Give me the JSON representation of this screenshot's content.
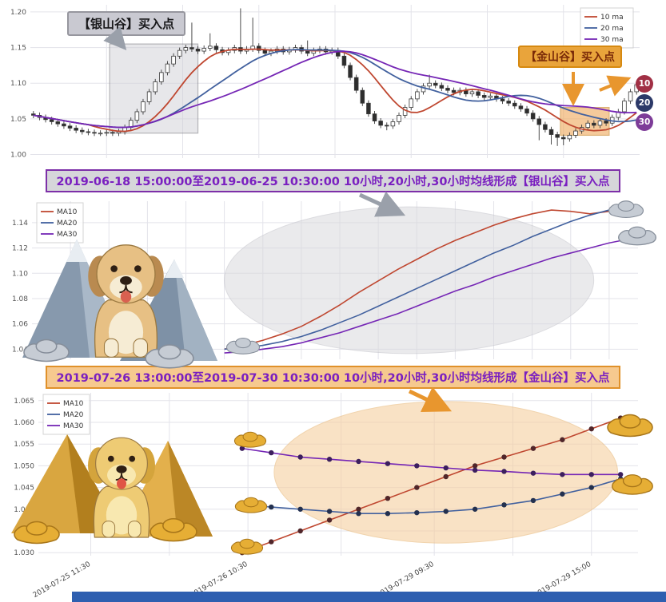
{
  "colors": {
    "ma10": "#bf4730",
    "ma20": "#41609e",
    "ma30": "#7526b5",
    "grid": "#e3e3ea",
    "candle_up": "#ffffff",
    "candle_down": "#2d2d2d"
  },
  "footer": {
    "color": "#2e5fb0"
  },
  "top": {
    "callout_silver": "【银山谷】买入点",
    "callout_gold": "【金山谷】买入点",
    "badges": [
      {
        "label": "10",
        "color": "#a13045"
      },
      {
        "label": "20",
        "color": "#2c3968"
      },
      {
        "label": "30",
        "color": "#7d3c98"
      }
    ]
  },
  "banners": {
    "silver": "2019-06-18 15:00:00至2019-06-25 10:30:00 10小时,20小时,30小时均线形成【银山谷】买入点",
    "gold": "2019-07-26 13:00:00至2019-07-30 10:30:00 10小时,20小时,30小时均线形成【金山谷】买入点"
  },
  "decorations": {
    "middle": [
      "silver-mountains",
      "golden-retriever-dog",
      "silver-ingots"
    ],
    "bottom": [
      "gold-pyramids",
      "golden-dog",
      "gold-ingots"
    ]
  },
  "chart_data": [
    {
      "type": "candlestick",
      "title": "",
      "ylim": [
        0.995,
        1.21
      ],
      "yticks": [
        1.0,
        1.05,
        1.1,
        1.15,
        1.2
      ],
      "ytick_labels": [
        "1.00",
        "1.05",
        "1.10",
        "1.15",
        "1.20"
      ],
      "xlim": [
        0,
        100
      ],
      "xgrid": [
        12.5,
        25,
        37.5,
        50,
        62.5,
        75,
        87.5
      ],
      "legend": [
        {
          "label": "10 ma",
          "color": "ma10"
        },
        {
          "label": "20 ma",
          "color": "ma20"
        },
        {
          "label": "30 ma",
          "color": "ma30"
        }
      ],
      "ma_windows": [
        10,
        20,
        30
      ],
      "highlights": [
        {
          "shape": "rect",
          "name": "silver-valley-region",
          "x0": 13,
          "x1": 27.5,
          "y0": 1.03,
          "y1": 1.155,
          "fill": "#d0d0d6",
          "opacity": 0.5,
          "stroke": "#6b6b73"
        },
        {
          "shape": "rect",
          "name": "gold-valley-region",
          "x0": 87,
          "x1": 95,
          "y0": 1.027,
          "y1": 1.066,
          "fill": "#f0a85a",
          "opacity": 0.6,
          "stroke": "#c87f1e"
        }
      ],
      "candles": [
        [
          1.057,
          1.061,
          1.051,
          1.055
        ],
        [
          1.055,
          1.059,
          1.048,
          1.052
        ],
        [
          1.052,
          1.056,
          1.045,
          1.049
        ],
        [
          1.049,
          1.053,
          1.042,
          1.046
        ],
        [
          1.046,
          1.05,
          1.039,
          1.043
        ],
        [
          1.043,
          1.047,
          1.036,
          1.04
        ],
        [
          1.04,
          1.044,
          1.033,
          1.037
        ],
        [
          1.037,
          1.041,
          1.03,
          1.034
        ],
        [
          1.034,
          1.038,
          1.028,
          1.032
        ],
        [
          1.032,
          1.036,
          1.027,
          1.031
        ],
        [
          1.031,
          1.035,
          1.026,
          1.03
        ],
        [
          1.03,
          1.034,
          1.026,
          1.03
        ],
        [
          1.03,
          1.035,
          1.026,
          1.031
        ],
        [
          1.031,
          1.035,
          1.026,
          1.03
        ],
        [
          1.03,
          1.036,
          1.026,
          1.032
        ],
        [
          1.032,
          1.042,
          1.028,
          1.038
        ],
        [
          1.038,
          1.052,
          1.034,
          1.048
        ],
        [
          1.048,
          1.064,
          1.044,
          1.06
        ],
        [
          1.06,
          1.078,
          1.056,
          1.074
        ],
        [
          1.074,
          1.092,
          1.07,
          1.088
        ],
        [
          1.088,
          1.106,
          1.084,
          1.102
        ],
        [
          1.102,
          1.119,
          1.098,
          1.115
        ],
        [
          1.115,
          1.131,
          1.111,
          1.127
        ],
        [
          1.127,
          1.142,
          1.123,
          1.138
        ],
        [
          1.138,
          1.15,
          1.134,
          1.146
        ],
        [
          1.146,
          1.154,
          1.142,
          1.15
        ],
        [
          1.15,
          1.185,
          1.144,
          1.148
        ],
        [
          1.148,
          1.152,
          1.141,
          1.145
        ],
        [
          1.145,
          1.153,
          1.141,
          1.149
        ],
        [
          1.149,
          1.17,
          1.145,
          1.152
        ],
        [
          1.152,
          1.156,
          1.143,
          1.147
        ],
        [
          1.147,
          1.151,
          1.139,
          1.143
        ],
        [
          1.143,
          1.15,
          1.139,
          1.146
        ],
        [
          1.146,
          1.154,
          1.142,
          1.15
        ],
        [
          1.15,
          1.205,
          1.141,
          1.145
        ],
        [
          1.145,
          1.152,
          1.141,
          1.148
        ],
        [
          1.148,
          1.192,
          1.144,
          1.152
        ],
        [
          1.152,
          1.156,
          1.142,
          1.146
        ],
        [
          1.146,
          1.15,
          1.138,
          1.142
        ],
        [
          1.142,
          1.149,
          1.138,
          1.145
        ],
        [
          1.145,
          1.152,
          1.141,
          1.148
        ],
        [
          1.148,
          1.152,
          1.14,
          1.144
        ],
        [
          1.144,
          1.151,
          1.14,
          1.147
        ],
        [
          1.147,
          1.154,
          1.143,
          1.15
        ],
        [
          1.15,
          1.154,
          1.141,
          1.145
        ],
        [
          1.145,
          1.16,
          1.138,
          1.142
        ],
        [
          1.142,
          1.15,
          1.138,
          1.146
        ],
        [
          1.146,
          1.152,
          1.142,
          1.148
        ],
        [
          1.148,
          1.152,
          1.14,
          1.144
        ],
        [
          1.144,
          1.15,
          1.14,
          1.146
        ],
        [
          1.146,
          1.15,
          1.134,
          1.138
        ],
        [
          1.138,
          1.142,
          1.121,
          1.125
        ],
        [
          1.125,
          1.129,
          1.104,
          1.108
        ],
        [
          1.108,
          1.112,
          1.086,
          1.09
        ],
        [
          1.09,
          1.094,
          1.068,
          1.072
        ],
        [
          1.072,
          1.076,
          1.053,
          1.057
        ],
        [
          1.057,
          1.061,
          1.043,
          1.047
        ],
        [
          1.047,
          1.051,
          1.037,
          1.041
        ],
        [
          1.041,
          1.045,
          1.034,
          1.04
        ],
        [
          1.04,
          1.05,
          1.036,
          1.046
        ],
        [
          1.046,
          1.059,
          1.042,
          1.055
        ],
        [
          1.055,
          1.07,
          1.051,
          1.066
        ],
        [
          1.066,
          1.082,
          1.062,
          1.078
        ],
        [
          1.078,
          1.092,
          1.074,
          1.088
        ],
        [
          1.088,
          1.1,
          1.084,
          1.096
        ],
        [
          1.096,
          1.112,
          1.092,
          1.1
        ],
        [
          1.1,
          1.104,
          1.093,
          1.097
        ],
        [
          1.097,
          1.101,
          1.089,
          1.093
        ],
        [
          1.093,
          1.097,
          1.086,
          1.09
        ],
        [
          1.09,
          1.094,
          1.083,
          1.087
        ],
        [
          1.087,
          1.094,
          1.083,
          1.09
        ],
        [
          1.09,
          1.094,
          1.081,
          1.085
        ],
        [
          1.085,
          1.092,
          1.081,
          1.088
        ],
        [
          1.088,
          1.092,
          1.079,
          1.083
        ],
        [
          1.083,
          1.087,
          1.076,
          1.08
        ],
        [
          1.08,
          1.086,
          1.076,
          1.082
        ],
        [
          1.082,
          1.086,
          1.074,
          1.078
        ],
        [
          1.078,
          1.082,
          1.071,
          1.075
        ],
        [
          1.075,
          1.079,
          1.068,
          1.072
        ],
        [
          1.072,
          1.076,
          1.064,
          1.068
        ],
        [
          1.068,
          1.072,
          1.06,
          1.064
        ],
        [
          1.064,
          1.068,
          1.054,
          1.058
        ],
        [
          1.058,
          1.062,
          1.046,
          1.05
        ],
        [
          1.05,
          1.054,
          1.02,
          1.042
        ],
        [
          1.042,
          1.046,
          1.031,
          1.035
        ],
        [
          1.035,
          1.039,
          1.014,
          1.028
        ],
        [
          1.028,
          1.032,
          1.012,
          1.024
        ],
        [
          1.024,
          1.028,
          1.013,
          1.022
        ],
        [
          1.022,
          1.031,
          1.018,
          1.027
        ],
        [
          1.027,
          1.037,
          1.023,
          1.033
        ],
        [
          1.033,
          1.042,
          1.029,
          1.038
        ],
        [
          1.038,
          1.048,
          1.034,
          1.044
        ],
        [
          1.044,
          1.048,
          1.037,
          1.041
        ],
        [
          1.041,
          1.051,
          1.037,
          1.047
        ],
        [
          1.047,
          1.051,
          1.04,
          1.044
        ],
        [
          1.044,
          1.056,
          1.04,
          1.052
        ],
        [
          1.052,
          1.064,
          1.048,
          1.06
        ],
        [
          1.06,
          1.079,
          1.056,
          1.075
        ],
        [
          1.075,
          1.092,
          1.071,
          1.088
        ],
        [
          1.088,
          1.102,
          1.084,
          1.098
        ]
      ]
    },
    {
      "type": "line",
      "title": "",
      "ylim": [
        1.032,
        1.157
      ],
      "yticks": [
        1.04,
        1.06,
        1.08,
        1.1,
        1.12,
        1.14
      ],
      "ytick_labels": [
        "1.04",
        "1.06",
        "1.08",
        "1.10",
        "1.12",
        "1.14"
      ],
      "xlim": [
        0,
        31.5
      ],
      "xgrid": [
        2,
        4,
        6,
        8,
        10,
        12,
        14,
        16,
        18,
        20,
        22,
        24,
        26,
        28,
        30
      ],
      "legend": [
        {
          "label": "MA10",
          "color": "ma10"
        },
        {
          "label": "MA20",
          "color": "ma20"
        },
        {
          "label": "MA30",
          "color": "ma30"
        }
      ],
      "x": [
        10,
        11,
        12,
        13,
        14,
        15,
        16,
        17,
        18,
        19,
        20,
        21,
        22,
        23,
        24,
        25,
        26,
        27,
        28,
        29,
        30,
        31
      ],
      "series": [
        {
          "name": "MA10",
          "color": "ma10",
          "values": [
            1.04,
            1.043,
            1.047,
            1.052,
            1.058,
            1.066,
            1.075,
            1.085,
            1.094,
            1.103,
            1.111,
            1.119,
            1.126,
            1.132,
            1.138,
            1.143,
            1.147,
            1.15,
            1.149,
            1.147,
            1.149,
            1.152
          ]
        },
        {
          "name": "MA20",
          "color": "ma20",
          "values": [
            1.04,
            1.041,
            1.043,
            1.046,
            1.05,
            1.055,
            1.061,
            1.067,
            1.074,
            1.081,
            1.088,
            1.095,
            1.102,
            1.109,
            1.116,
            1.122,
            1.129,
            1.135,
            1.141,
            1.146,
            1.15,
            1.153
          ]
        },
        {
          "name": "MA30",
          "color": "ma30",
          "values": [
            1.037,
            1.038,
            1.04,
            1.042,
            1.045,
            1.049,
            1.053,
            1.058,
            1.063,
            1.068,
            1.074,
            1.08,
            1.086,
            1.091,
            1.097,
            1.102,
            1.107,
            1.112,
            1.116,
            1.12,
            1.124,
            1.127
          ]
        }
      ],
      "highlights": [
        {
          "shape": "ellipse",
          "name": "silver-valley-ellipse",
          "cx": 19.6,
          "cy": 1.0945,
          "rx": 9.6,
          "ry": 0.058,
          "fill": "#d9d9dd",
          "opacity": 0.55,
          "stroke": "#bfbfc6"
        }
      ]
    },
    {
      "type": "line",
      "title": "",
      "ylim": [
        1.0293,
        1.0668
      ],
      "yticks": [
        1.03,
        1.035,
        1.04,
        1.045,
        1.05,
        1.055,
        1.06,
        1.065
      ],
      "ytick_labels": [
        "1.030",
        "1.035",
        "1.040",
        "1.045",
        "1.050",
        "1.055",
        "1.060",
        "1.065"
      ],
      "xlim": [
        0,
        20.6
      ],
      "xgrid": [
        1.8,
        4.5,
        7.2,
        10.4,
        13.6,
        16.3,
        19.0
      ],
      "markers": true,
      "legend": [
        {
          "label": "MA10",
          "color": "ma10"
        },
        {
          "label": "MA20",
          "color": "ma20"
        },
        {
          "label": "MA30",
          "color": "ma30"
        }
      ],
      "x": [
        7,
        8,
        9,
        10,
        11,
        12,
        13,
        14,
        15,
        16,
        17,
        18,
        19,
        20
      ],
      "series": [
        {
          "name": "MA10",
          "color": "ma10",
          "dot": "#50262a",
          "values": [
            1.03,
            1.0325,
            1.035,
            1.0375,
            1.04,
            1.0425,
            1.045,
            1.0475,
            1.05,
            1.052,
            1.054,
            1.056,
            1.0585,
            1.061
          ]
        },
        {
          "name": "MA20",
          "color": "ma20",
          "dot": "#23304f",
          "values": [
            1.041,
            1.0405,
            1.04,
            1.0395,
            1.039,
            1.039,
            1.0392,
            1.0395,
            1.04,
            1.041,
            1.042,
            1.0435,
            1.045,
            1.047
          ]
        },
        {
          "name": "MA30",
          "color": "ma30",
          "dot": "#3c1f5e",
          "values": [
            1.054,
            1.053,
            1.052,
            1.0515,
            1.051,
            1.0505,
            1.05,
            1.0495,
            1.049,
            1.0487,
            1.0483,
            1.048,
            1.048,
            1.048
          ]
        }
      ],
      "xticks": [
        {
          "pos": 1.8,
          "label": "2019-07-25 11:30"
        },
        {
          "pos": 7.2,
          "label": "2019-07-26 10:30"
        },
        {
          "pos": 13.6,
          "label": "2019-07-29 09:30"
        },
        {
          "pos": 19.0,
          "label": "2019-07-29 15:00"
        }
      ],
      "highlights": [
        {
          "shape": "ellipse",
          "name": "gold-valley-ellipse",
          "cx": 14,
          "cy": 1.0485,
          "rx": 5.9,
          "ry": 0.0163,
          "fill": "#f6cfa0",
          "opacity": 0.6,
          "stroke": "#e8b878"
        }
      ]
    }
  ]
}
